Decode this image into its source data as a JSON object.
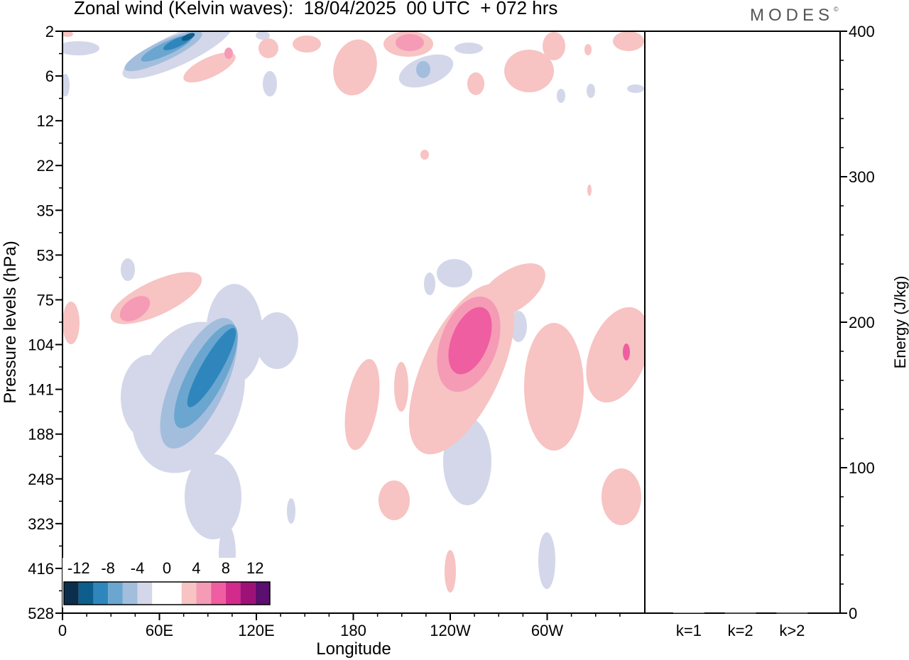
{
  "header": {
    "title": "Zonal wind (Kelvin waves):  18/04/2025  00 UTC  + 072 hrs",
    "logo": "MODES"
  },
  "chart_data": [
    {
      "type": "heatmap",
      "title": "Zonal wind (Kelvin waves):  18/04/2025  00 UTC  + 072 hrs",
      "xlabel": "Longitude",
      "ylabel": "Pressure levels (hPa)",
      "x_ticks": [
        "0",
        "60E",
        "120E",
        "180",
        "120W",
        "60W"
      ],
      "y_ticks": [
        "2",
        "6",
        "12",
        "22",
        "35",
        "53",
        "75",
        "104",
        "141",
        "188",
        "248",
        "323",
        "416",
        "528"
      ],
      "colorbar": {
        "labels": [
          "-12",
          "-8",
          "-4",
          "0",
          "4",
          "8",
          "12"
        ],
        "levels": [
          -14,
          -12,
          -10,
          -8,
          -6,
          -4,
          -2,
          0,
          2,
          4,
          6,
          8,
          10,
          12,
          14
        ],
        "colors": [
          "#0b2e4d",
          "#0d5e8c",
          "#2f86bd",
          "#6aa6cf",
          "#a3bedd",
          "#d3d7e9",
          "#ffffff",
          "#ffffff",
          "#f7c3c3",
          "#f59bb6",
          "#ef5ea0",
          "#d32b8b",
          "#9e1278",
          "#5b0f6e"
        ]
      },
      "anomalies": [
        {
          "lon": 260,
          "level": "104",
          "value": 9,
          "sign": "positive"
        },
        {
          "lon": 330,
          "level": "104",
          "value": 3,
          "sign": "positive"
        },
        {
          "lon": 60,
          "level": "75",
          "value": 5,
          "sign": "positive"
        },
        {
          "lon": 85,
          "level": "141",
          "value": -11,
          "sign": "negative"
        },
        {
          "lon": 75,
          "level": "2",
          "value": -12,
          "sign": "negative"
        },
        {
          "lon": 205,
          "level": "2",
          "value": 6,
          "sign": "positive"
        }
      ]
    },
    {
      "type": "bar",
      "categories": [
        "k=1",
        "k=2",
        "k>2"
      ],
      "values": [
        0.5,
        0.3,
        0.3
      ],
      "ylabel": "Energy (J/kg)",
      "ylim": [
        0,
        400
      ],
      "y_ticks": [
        "0",
        "100",
        "200",
        "300",
        "400"
      ]
    }
  ]
}
